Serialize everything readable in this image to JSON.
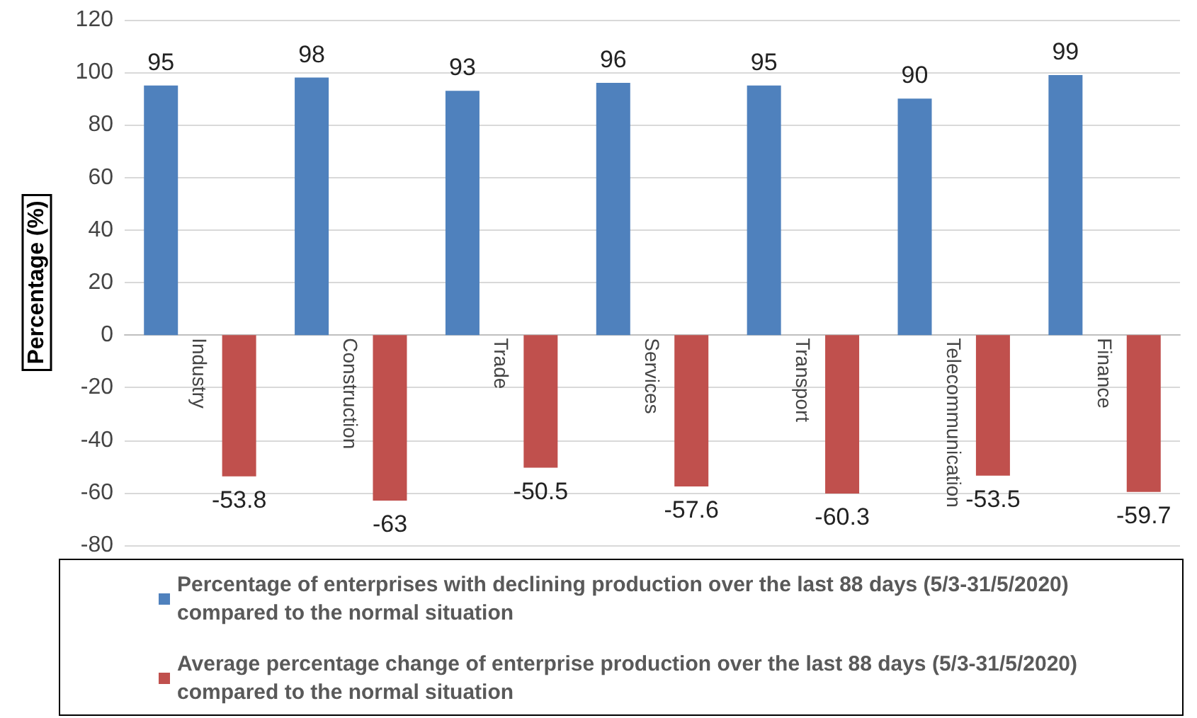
{
  "chart_data": {
    "type": "bar",
    "ylabel": "Percentage (%)",
    "categories": [
      "Industry",
      "Construction",
      "Trade",
      "Services",
      "Transport",
      "Telecommunication",
      "Finance"
    ],
    "series": [
      {
        "name": "Percentage of enterprises with declining production over the last 88 days (5/3-31/5/2020) compared to the normal situation",
        "color": "#4f81bd",
        "values": [
          95,
          98,
          93,
          96,
          95,
          90,
          99
        ]
      },
      {
        "name": "Average percentage change of enterprise production over the last 88 days (5/3-31/5/2020) compared to the normal situation",
        "color": "#c0504d",
        "values": [
          -53.8,
          -63,
          -50.5,
          -57.6,
          -60.3,
          -53.5,
          -59.7
        ]
      }
    ],
    "ylim": [
      -80,
      120
    ],
    "yticks": [
      -80,
      -60,
      -40,
      -20,
      0,
      20,
      40,
      60,
      80,
      100,
      120
    ],
    "grid": "y",
    "legend": "bottom",
    "data_labels": true
  }
}
